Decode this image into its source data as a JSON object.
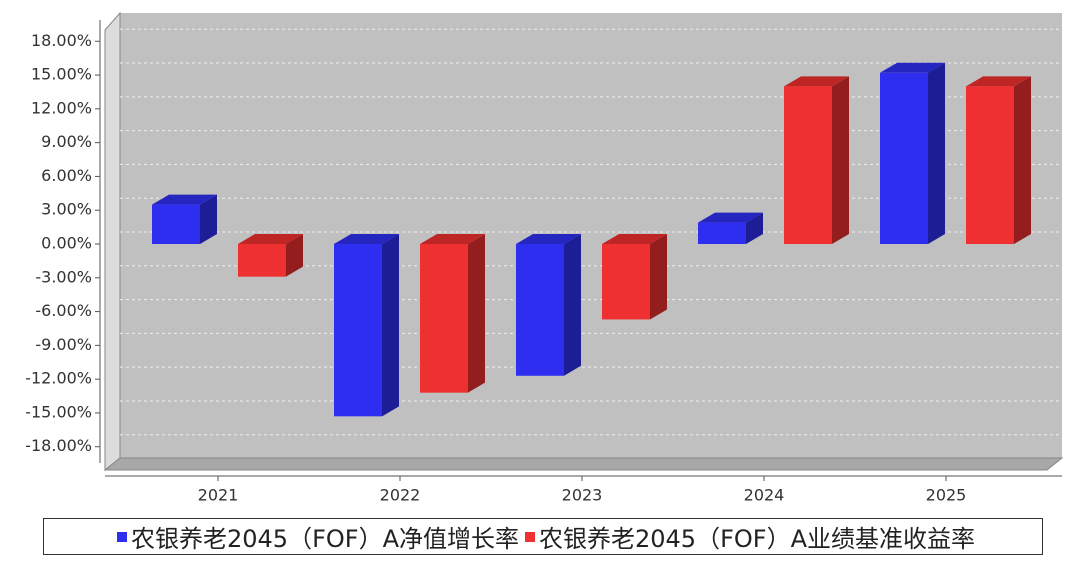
{
  "chart_data": {
    "type": "bar3d",
    "categories": [
      "2021",
      "2022",
      "2023",
      "2024",
      "2025"
    ],
    "series": [
      {
        "name": "农银养老2045（FOF）A净值增长率",
        "color": "#2e2ef0",
        "values": [
          3.5,
          -15.3,
          -11.7,
          1.9,
          15.2
        ]
      },
      {
        "name": "农银养老2045（FOF）A业绩基准收益率",
        "color": "#ee3030",
        "values": [
          -2.9,
          -13.2,
          -6.7,
          14.0,
          14.0
        ]
      }
    ],
    "ylim": [
      -19,
      19
    ],
    "yticks": [
      {
        "value": -18,
        "label": "-18.00%"
      },
      {
        "value": -15,
        "label": "-15.00%"
      },
      {
        "value": -12,
        "label": "-12.00%"
      },
      {
        "value": -9,
        "label": "-9.00%"
      },
      {
        "value": -6,
        "label": "-6.00%"
      },
      {
        "value": -3,
        "label": "-3.00%"
      },
      {
        "value": 0,
        "label": "0.00%"
      },
      {
        "value": 3,
        "label": "3.00%"
      },
      {
        "value": 6,
        "label": "6.00%"
      },
      {
        "value": 9,
        "label": "9.00%"
      },
      {
        "value": 12,
        "label": "12.00%"
      },
      {
        "value": 15,
        "label": "15.00%"
      },
      {
        "value": 18,
        "label": "18.00%"
      }
    ],
    "grid": true
  }
}
